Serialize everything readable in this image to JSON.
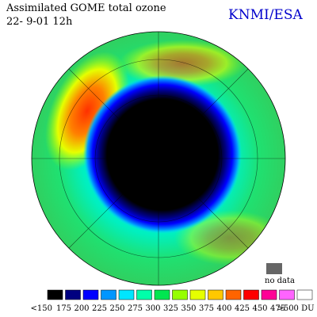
{
  "header": {
    "title": "Assimilated GOME total ozone",
    "date": "22- 9-01 12h",
    "credit": "KNMI/ESA"
  },
  "no_data": "no data",
  "legend": [
    {
      "label": "<150",
      "color": "#000000"
    },
    {
      "label": "175",
      "color": "#000080"
    },
    {
      "label": "200",
      "color": "#0000ff"
    },
    {
      "label": "225",
      "color": "#0096ff"
    },
    {
      "label": "250",
      "color": "#00e6ff"
    },
    {
      "label": "275",
      "color": "#00ffaa"
    },
    {
      "label": "300",
      "color": "#00e650"
    },
    {
      "label": "325",
      "color": "#96ff00"
    },
    {
      "label": "350",
      "color": "#e6ff00"
    },
    {
      "label": "375",
      "color": "#ffc800"
    },
    {
      "label": "400",
      "color": "#ff6400"
    },
    {
      "label": "425",
      "color": "#ff0000"
    },
    {
      "label": "450",
      "color": "#ff0096"
    },
    {
      "label": "475",
      "color": "#ff64ff"
    },
    {
      "label": ">500 DU",
      "color": "#ffffff"
    }
  ]
}
